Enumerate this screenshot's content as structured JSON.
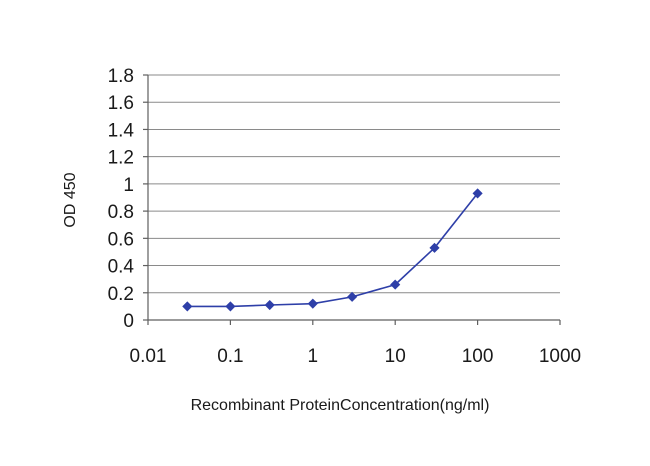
{
  "chart_data": {
    "type": "line",
    "title": "",
    "xlabel": "Recombinant ProteinConcentration(ng/ml)",
    "ylabel": "OD 450",
    "x_scale": "log",
    "xlim": [
      0.01,
      1000
    ],
    "ylim": [
      0,
      1.8
    ],
    "grid": "horizontal",
    "legend": "none",
    "x_tick_labels": [
      "0.01",
      "0.1",
      "1",
      "10",
      "100",
      "1000"
    ],
    "y_tick_labels": [
      "0",
      "0.2",
      "0.4",
      "0.6",
      "0.8",
      "1",
      "1.2",
      "1.4",
      "1.6",
      "1.8"
    ],
    "series": [
      {
        "color": "#2e3fa8",
        "marker": "diamond",
        "x": [
          0.03,
          0.1,
          0.3,
          1,
          3,
          10,
          30,
          100
        ],
        "y": [
          0.1,
          0.1,
          0.11,
          0.12,
          0.17,
          0.26,
          0.53,
          0.93
        ]
      }
    ]
  }
}
